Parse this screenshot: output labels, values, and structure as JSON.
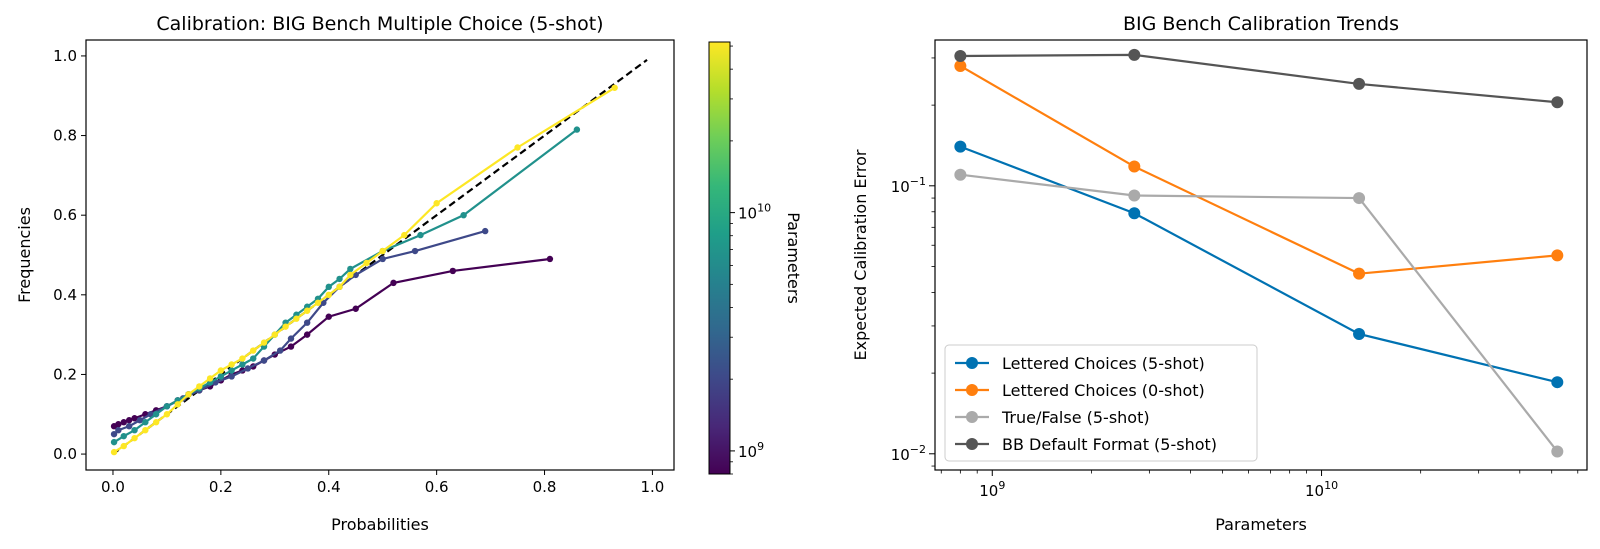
{
  "chart_data": [
    {
      "type": "line",
      "title": "Calibration: BIG Bench Multiple Choice (5-shot)",
      "xlabel": "Probabilities",
      "ylabel": "Frequencies",
      "xlim": [
        -0.05,
        1.04
      ],
      "ylim": [
        -0.04,
        1.04
      ],
      "xticks": [
        "0.0",
        "0.2",
        "0.4",
        "0.6",
        "0.8",
        "1.0"
      ],
      "yticks": [
        "0.0",
        "0.2",
        "0.4",
        "0.6",
        "0.8",
        "1.0"
      ],
      "reference_line": {
        "style": "dashed",
        "color": "#000000",
        "x": [
          0,
          0.99
        ],
        "y": [
          0,
          0.99
        ]
      },
      "colorbar": {
        "label": "Parameters",
        "scale": "log",
        "range": [
          800000000.0,
          52000000000.0
        ],
        "ticks": [
          {
            "value": 1000000000.0,
            "base": "10",
            "exp": "9"
          },
          {
            "value": 10000000000.0,
            "base": "10",
            "exp": "10"
          }
        ],
        "colormap": "viridis",
        "stops": [
          "#440154",
          "#482878",
          "#3e4989",
          "#31688e",
          "#26828e",
          "#1f9e89",
          "#35b779",
          "#6ece58",
          "#b5de2b",
          "#fde725"
        ]
      },
      "series": [
        {
          "params": 800000000.0,
          "color": "#440154",
          "x": [
            0.002,
            0.01,
            0.02,
            0.03,
            0.04,
            0.06,
            0.08,
            0.1,
            0.12,
            0.14,
            0.16,
            0.18,
            0.2,
            0.22,
            0.24,
            0.26,
            0.28,
            0.3,
            0.33,
            0.36,
            0.4,
            0.45,
            0.52,
            0.63,
            0.81
          ],
          "y": [
            0.07,
            0.075,
            0.08,
            0.085,
            0.09,
            0.1,
            0.11,
            0.12,
            0.135,
            0.15,
            0.16,
            0.17,
            0.185,
            0.2,
            0.21,
            0.22,
            0.235,
            0.25,
            0.27,
            0.3,
            0.345,
            0.365,
            0.43,
            0.46,
            0.49
          ]
        },
        {
          "params": 2700000000.0,
          "color": "#3e4989",
          "x": [
            0.002,
            0.01,
            0.03,
            0.05,
            0.07,
            0.1,
            0.13,
            0.16,
            0.19,
            0.22,
            0.25,
            0.28,
            0.31,
            0.33,
            0.36,
            0.39,
            0.42,
            0.45,
            0.5,
            0.56,
            0.69
          ],
          "y": [
            0.05,
            0.06,
            0.07,
            0.085,
            0.1,
            0.12,
            0.14,
            0.16,
            0.18,
            0.195,
            0.215,
            0.235,
            0.26,
            0.29,
            0.33,
            0.38,
            0.42,
            0.45,
            0.49,
            0.51,
            0.56
          ]
        },
        {
          "params": 13000000000.0,
          "color": "#21918c",
          "x": [
            0.002,
            0.02,
            0.04,
            0.06,
            0.08,
            0.1,
            0.12,
            0.14,
            0.16,
            0.18,
            0.2,
            0.22,
            0.24,
            0.26,
            0.28,
            0.3,
            0.32,
            0.34,
            0.36,
            0.38,
            0.4,
            0.42,
            0.44,
            0.5,
            0.57,
            0.65,
            0.86
          ],
          "y": [
            0.03,
            0.045,
            0.06,
            0.08,
            0.1,
            0.12,
            0.135,
            0.15,
            0.165,
            0.18,
            0.195,
            0.21,
            0.225,
            0.24,
            0.27,
            0.3,
            0.33,
            0.35,
            0.37,
            0.39,
            0.42,
            0.44,
            0.465,
            0.51,
            0.55,
            0.6,
            0.815
          ]
        },
        {
          "params": 52000000000.0,
          "color": "#fde725",
          "x": [
            0.002,
            0.02,
            0.04,
            0.06,
            0.08,
            0.1,
            0.12,
            0.14,
            0.16,
            0.18,
            0.2,
            0.22,
            0.24,
            0.26,
            0.28,
            0.3,
            0.32,
            0.34,
            0.36,
            0.38,
            0.4,
            0.42,
            0.44,
            0.47,
            0.5,
            0.54,
            0.6,
            0.75,
            0.93
          ],
          "y": [
            0.005,
            0.02,
            0.04,
            0.06,
            0.08,
            0.1,
            0.125,
            0.15,
            0.17,
            0.19,
            0.21,
            0.225,
            0.24,
            0.26,
            0.28,
            0.3,
            0.32,
            0.34,
            0.36,
            0.38,
            0.4,
            0.42,
            0.45,
            0.48,
            0.51,
            0.55,
            0.63,
            0.77,
            0.92
          ]
        }
      ]
    },
    {
      "type": "line",
      "title": "BIG Bench Calibration Trends",
      "xlabel": "Parameters",
      "ylabel": "Expected Calibration Error",
      "xscale": "log",
      "yscale": "log",
      "xlim": [
        670000000.0,
        64000000000.0
      ],
      "ylim": [
        0.0087,
        0.35
      ],
      "xticks": [
        {
          "value": 1000000000.0,
          "base": "10",
          "exp": "9"
        },
        {
          "value": 10000000000.0,
          "base": "10",
          "exp": "10"
        }
      ],
      "yticks": [
        {
          "value": 0.01,
          "base": "10",
          "exp": "−2"
        },
        {
          "value": 0.1,
          "base": "10",
          "exp": "−1"
        }
      ],
      "legend": {
        "position": "lower-left"
      },
      "x": [
        800000000.0,
        2700000000.0,
        13000000000.0,
        52000000000.0
      ],
      "series": [
        {
          "name": "Lettered Choices (5-shot)",
          "color": "#0072b2",
          "values": [
            0.14,
            0.079,
            0.028,
            0.0185
          ]
        },
        {
          "name": "Lettered Choices (0-shot)",
          "color": "#ff7f0e",
          "values": [
            0.28,
            0.118,
            0.047,
            0.055
          ]
        },
        {
          "name": "True/False (5-shot)",
          "color": "#aaaaaa",
          "values": [
            0.11,
            0.092,
            0.09,
            0.0102
          ]
        },
        {
          "name": "BB Default Format (5-shot)",
          "color": "#555555",
          "values": [
            0.305,
            0.308,
            0.24,
            0.205
          ]
        }
      ]
    }
  ]
}
